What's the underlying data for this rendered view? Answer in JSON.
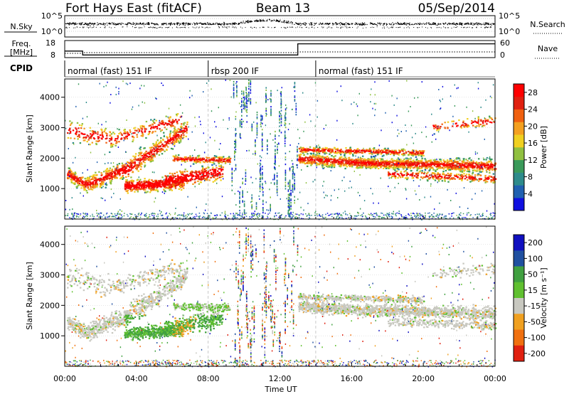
{
  "header": {
    "radar": "Fort Hays East (fitACF)",
    "beam": "Beam 13",
    "date": "05/Sep/2014"
  },
  "params": {
    "nsky_label": "N.Sky",
    "nsearch_label": "N.Search",
    "freq_label_1": "Freq.",
    "freq_label_2": "[MHz]",
    "nave_label": "Nave",
    "cpid_label": "CPID",
    "noise_ticks": [
      "10^5",
      "10^0"
    ],
    "freq_ticks": [
      "18",
      "8"
    ],
    "nave_ticks": [
      "60",
      "0"
    ]
  },
  "cpid_segments": [
    {
      "label": "normal (fast) 151 IF",
      "start": 0,
      "end": 8
    },
    {
      "label": "rbsp 200 IF",
      "start": 8,
      "end": 14
    },
    {
      "label": "normal (fast) 151 IF",
      "start": 14,
      "end": 24
    }
  ],
  "chart_data": [
    {
      "type": "heatmap",
      "name": "power",
      "ylabel": "Slant Range [km]",
      "xlabel": "Time UT",
      "x_ticks": [
        "00:00",
        "04:00",
        "08:00",
        "12:00",
        "16:00",
        "20:00",
        "00:00"
      ],
      "xlim": [
        0,
        24
      ],
      "ylim": [
        0,
        4600
      ],
      "y_ticks": [
        1000,
        2000,
        3000,
        4000
      ],
      "colorbar_label": "Power [dB]",
      "colorbar_ticks": [
        4,
        8,
        12,
        16,
        20,
        24,
        28
      ],
      "colorbar_range": [
        0,
        30
      ]
    },
    {
      "type": "heatmap",
      "name": "velocity",
      "ylabel": "Slant Range [km]",
      "xlabel": "Time UT",
      "x_ticks": [
        "00:00",
        "04:00",
        "08:00",
        "12:00",
        "16:00",
        "20:00",
        "00:00"
      ],
      "xlim": [
        0,
        24
      ],
      "ylim": [
        0,
        4600
      ],
      "y_ticks": [
        1000,
        2000,
        3000,
        4000
      ],
      "colorbar_label": "Velocity [m s⁻¹]",
      "colorbar_ticks": [
        "200",
        "100",
        "50",
        "15",
        "-15",
        "-50",
        "-100",
        "-200"
      ]
    }
  ],
  "colors": {
    "power_scale": [
      "#1010e0",
      "#2060b0",
      "#2e8b8b",
      "#3a9a5a",
      "#90c040",
      "#f0d020",
      "#f4a020",
      "#f06010",
      "#e02010",
      "#ff0000"
    ],
    "velocity_scale": [
      "#1010c0",
      "#2050a0",
      "#40a040",
      "#60c030",
      "#c8c8c0",
      "#f0a020",
      "#f07010",
      "#e02010"
    ]
  }
}
